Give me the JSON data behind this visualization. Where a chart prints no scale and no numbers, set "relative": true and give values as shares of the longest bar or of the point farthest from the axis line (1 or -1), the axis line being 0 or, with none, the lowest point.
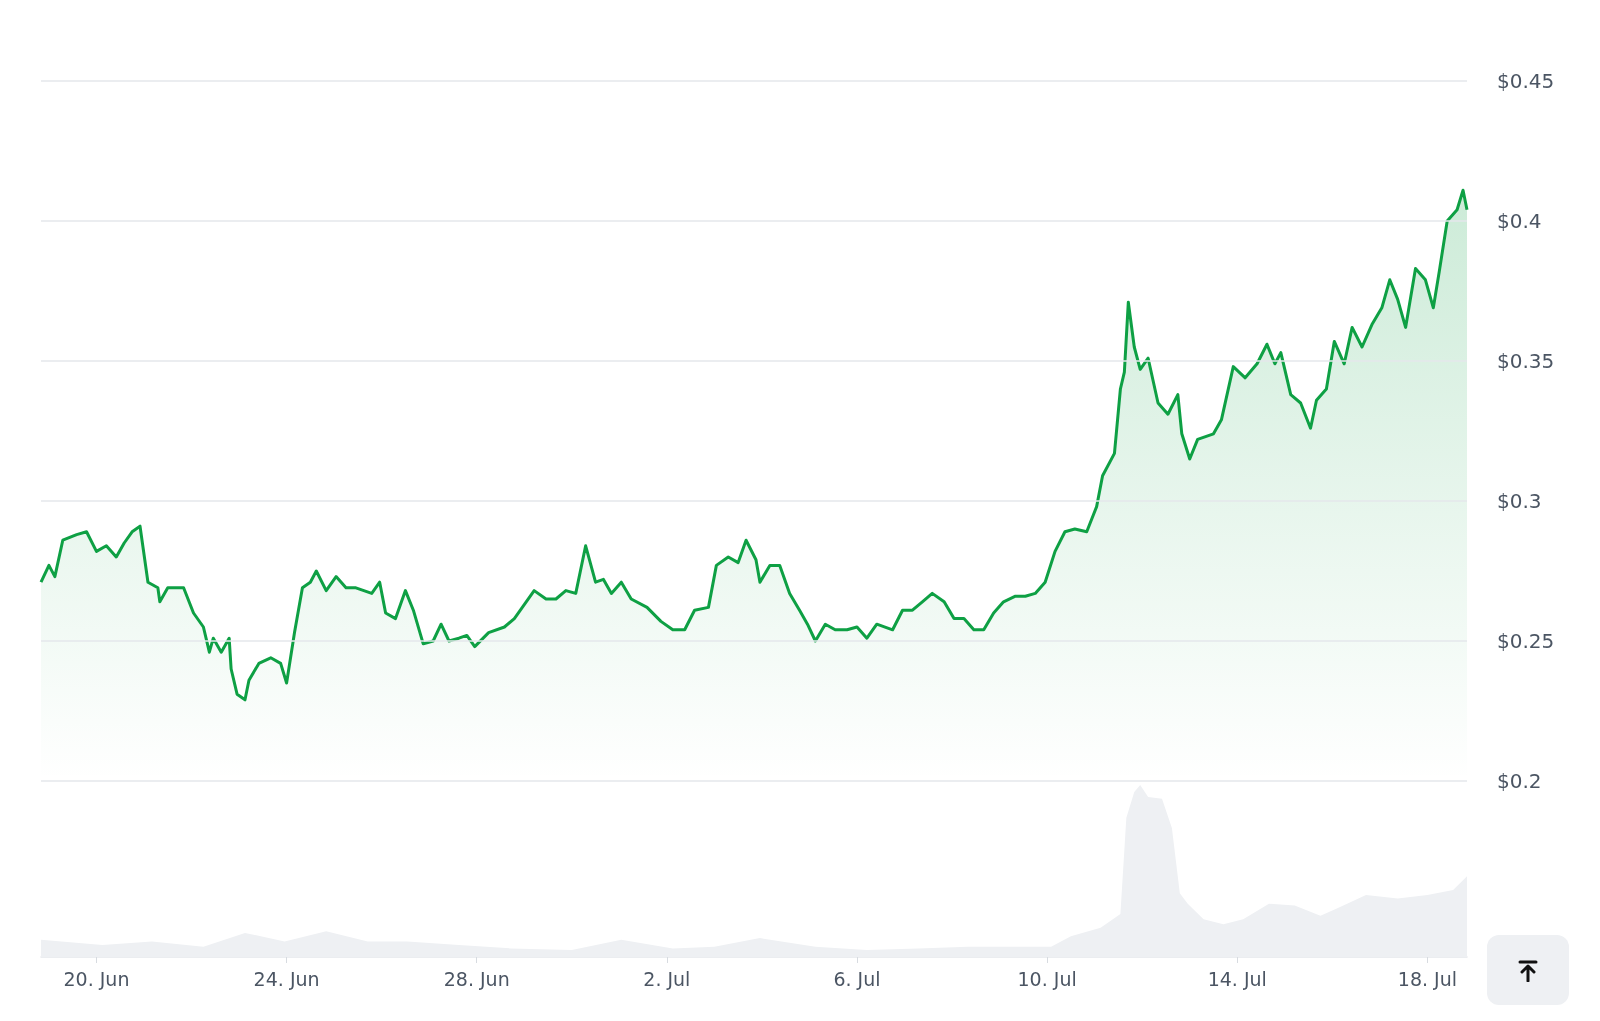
{
  "chart_data": [
    {
      "type": "area",
      "color": "#0ea044",
      "x": [
        "--06-18T20:00",
        "--06-19T00:00",
        "--06-19T03:00",
        "--06-19T07:00",
        "--06-19T14:00",
        "--06-19T19:00",
        "--06-20T00:00",
        "--06-20T05:00",
        "--06-20T10:00",
        "--06-20T14:00",
        "--06-20T18:00",
        "--06-20T22:00",
        "--06-21T02:00",
        "--06-21T07:00",
        "--06-21T08:00",
        "--06-21T12:00",
        "--06-21T20:00",
        "--06-22T01:00",
        "--06-22T06:00",
        "--06-22T09:00",
        "--06-22T11:00",
        "--06-22T15:00",
        "--06-22T19:00",
        "--06-22T20:00",
        "--06-22T23:00",
        "--06-23T03:00",
        "--06-23T05:00",
        "--06-23T10:00",
        "--06-23T16:00",
        "--06-23T21:00",
        "--06-24T00:00",
        "--06-24T04:00",
        "--06-24T08:00",
        "--06-24T12:00",
        "--06-24T15:00",
        "--06-24T20:00",
        "--06-25T01:00",
        "--06-25T06:00",
        "--06-25T11:00",
        "--06-25T19:00",
        "--06-25T23:00",
        "--06-26T02:00",
        "--06-26T07:00",
        "--06-26T12:00",
        "--06-26T16:00",
        "--06-26T21:00",
        "--06-27T02:00",
        "--06-27T06:00",
        "--06-27T10:00",
        "--06-27T15:00",
        "--06-27T19:00",
        "--06-27T23:00",
        "--06-28T06:00",
        "--06-28T14:00",
        "--06-28T19:00",
        "--06-29T00:00",
        "--06-29T05:00",
        "--06-29T11:00",
        "--06-29T16:00",
        "--06-29T21:00",
        "--06-30T02:00",
        "--06-30T07:00",
        "--06-30T12:00",
        "--06-30T16:00",
        "--06-30T20:00",
        "--07-01T01:00",
        "--07-01T06:00",
        "--07-01T14:00",
        "--07-01T21:00",
        "--07-02T03:00",
        "--07-02T09:00",
        "--07-02T14:00",
        "--07-02T21:00",
        "--07-03T01:00",
        "--07-03T07:00",
        "--07-03T12:00",
        "--07-03T16:00",
        "--07-03T21:00",
        "--07-03T23:00",
        "--07-04T04:00",
        "--07-04T09:00",
        "--07-04T14:00",
        "--07-04T19:00",
        "--07-04T23:00",
        "--07-05T03:00",
        "--07-05T08:00",
        "--07-05T13:00",
        "--07-05T19:00",
        "--07-06T00:00",
        "--07-06T05:00",
        "--07-06T10:00",
        "--07-06T18:00",
        "--07-06T23:00",
        "--07-07T04:00",
        "--07-07T09:00",
        "--07-07T14:00",
        "--07-07T20:00",
        "--07-08T01:00",
        "--07-08T06:00",
        "--07-08T11:00",
        "--07-08T16:00",
        "--07-08T21:00",
        "--07-09T02:00",
        "--07-09T08:00",
        "--07-09T13:00",
        "--07-09T18:00",
        "--07-09T23:00",
        "--07-10T04:00",
        "--07-10T09:00",
        "--07-10T14:00",
        "--07-10T20:00",
        "--07-11T01:00",
        "--07-11T04:00",
        "--07-11T10:00",
        "--07-11T13:00",
        "--07-11T15:00",
        "--07-11T17:00",
        "--07-11T20:00",
        "--07-11T23:00",
        "--07-12T03:00",
        "--07-12T08:00",
        "--07-12T13:00",
        "--07-12T18:00",
        "--07-12T20:00",
        "--07-13T00:00",
        "--07-13T04:00",
        "--07-13T12:00",
        "--07-13T16:00",
        "--07-13T22:00",
        "--07-14T04:00",
        "--07-14T10:00",
        "--07-14T15:00",
        "--07-14T19:00",
        "--07-14T22:00",
        "--07-15T03:00",
        "--07-15T08:00",
        "--07-15T13:00",
        "--07-15T16:00",
        "--07-15T21:00",
        "--07-16T01:00",
        "--07-16T06:00",
        "--07-16T10:00",
        "--07-16T15:00",
        "--07-16T20:00",
        "--07-17T01:00",
        "--07-17T05:00",
        "--07-17T09:00",
        "--07-17T13:00",
        "--07-17T18:00",
        "--07-17T23:00",
        "--07-18T03:00",
        "--07-18T06:00",
        "--07-18T10:00",
        "--07-18T15:00",
        "--07-18T18:00",
        "--07-18T20:00"
      ],
      "values": [
        0.271,
        0.277,
        0.273,
        0.286,
        0.288,
        0.289,
        0.282,
        0.284,
        0.28,
        0.285,
        0.289,
        0.291,
        0.271,
        0.269,
        0.264,
        0.269,
        0.269,
        0.26,
        0.255,
        0.246,
        0.251,
        0.246,
        0.251,
        0.24,
        0.231,
        0.229,
        0.236,
        0.242,
        0.244,
        0.242,
        0.235,
        0.253,
        0.269,
        0.271,
        0.275,
        0.268,
        0.273,
        0.269,
        0.269,
        0.267,
        0.271,
        0.26,
        0.258,
        0.268,
        0.261,
        0.249,
        0.25,
        0.256,
        0.25,
        0.251,
        0.252,
        0.248,
        0.253,
        0.255,
        0.258,
        0.263,
        0.268,
        0.265,
        0.265,
        0.268,
        0.267,
        0.284,
        0.271,
        0.272,
        0.267,
        0.271,
        0.265,
        0.262,
        0.257,
        0.254,
        0.254,
        0.261,
        0.262,
        0.277,
        0.28,
        0.278,
        0.286,
        0.279,
        0.271,
        0.277,
        0.277,
        0.267,
        0.261,
        0.256,
        0.25,
        0.256,
        0.254,
        0.254,
        0.255,
        0.251,
        0.256,
        0.254,
        0.261,
        0.261,
        0.264,
        0.267,
        0.264,
        0.258,
        0.258,
        0.254,
        0.254,
        0.26,
        0.264,
        0.266,
        0.266,
        0.267,
        0.271,
        0.282,
        0.289,
        0.29,
        0.289,
        0.298,
        0.309,
        0.317,
        0.34,
        0.346,
        0.371,
        0.355,
        0.347,
        0.351,
        0.335,
        0.331,
        0.338,
        0.324,
        0.315,
        0.322,
        0.324,
        0.329,
        0.348,
        0.344,
        0.349,
        0.356,
        0.349,
        0.353,
        0.338,
        0.335,
        0.326,
        0.336,
        0.34,
        0.357,
        0.349,
        0.362,
        0.355,
        0.363,
        0.369,
        0.379,
        0.372,
        0.362,
        0.383,
        0.379,
        0.369,
        0.382,
        0.4,
        0.404,
        0.411,
        0.404
      ],
      "xlim": [
        "--06-18T20:00",
        "--07-18T20:00"
      ],
      "ylim": [
        0.2,
        0.45
      ],
      "yticks": [
        {
          "value": 0.2,
          "label": "$0.2"
        },
        {
          "value": 0.25,
          "label": "$0.25"
        },
        {
          "value": 0.3,
          "label": "$0.3"
        },
        {
          "value": 0.35,
          "label": "$0.35"
        },
        {
          "value": 0.4,
          "label": "$0.4"
        },
        {
          "value": 0.45,
          "label": "$0.45"
        }
      ],
      "grid": "y",
      "tick_labels": "y"
    },
    {
      "type": "area",
      "relative": true,
      "color": "#eef0f3",
      "x": [
        "--06-18T20:00",
        "--06-20T03:00",
        "--06-21T04:00",
        "--06-22T06:00",
        "--06-23T03:00",
        "--06-23T23:00",
        "--06-24T20:00",
        "--06-25T17:00",
        "--06-26T13:00",
        "--06-27T15:00",
        "--06-28T17:00",
        "--06-30T00:00",
        "--07-01T01:00",
        "--07-02T03:00",
        "--07-03T00:00",
        "--07-03T23:00",
        "--07-05T03:00",
        "--07-06T05:00",
        "--07-07T07:00",
        "--07-08T08:00",
        "--07-09T10:00",
        "--07-10T02:00",
        "--07-10T12:00",
        "--07-11T03:00",
        "--07-11T13:00",
        "--07-11T16:00",
        "--07-11T20:00",
        "--07-11T23:00",
        "--07-12T03:00",
        "--07-12T10:00",
        "--07-12T15:00",
        "--07-12T19:00",
        "--07-12T23:00",
        "--07-13T07:00",
        "--07-13T17:00",
        "--07-14T03:00",
        "--07-14T16:00",
        "--07-15T05:00",
        "--07-15T18:00",
        "--07-16T02:00",
        "--07-16T17:00",
        "--07-17T09:00",
        "--07-18T00:00",
        "--07-18T13:00",
        "--07-18T20:00"
      ],
      "values": [
        0.1,
        0.07,
        0.09,
        0.06,
        0.14,
        0.09,
        0.15,
        0.09,
        0.09,
        0.07,
        0.05,
        0.04,
        0.1,
        0.05,
        0.06,
        0.11,
        0.06,
        0.04,
        0.05,
        0.06,
        0.06,
        0.06,
        0.12,
        0.17,
        0.25,
        0.81,
        0.96,
        1,
        0.93,
        0.92,
        0.75,
        0.37,
        0.31,
        0.22,
        0.19,
        0.22,
        0.31,
        0.3,
        0.24,
        0.28,
        0.36,
        0.34,
        0.36,
        0.39,
        0.47
      ],
      "xlim": [
        "--06-18T20:00",
        "--07-18T20:00"
      ],
      "xticks": [
        {
          "value": "--06-20",
          "label": "20. Jun"
        },
        {
          "value": "--06-24",
          "label": "24. Jun"
        },
        {
          "value": "--06-28",
          "label": "28. Jun"
        },
        {
          "value": "--07-02",
          "label": "2. Jul"
        },
        {
          "value": "--07-06",
          "label": "6. Jul"
        },
        {
          "value": "--07-10",
          "label": "10. Jul"
        },
        {
          "value": "--07-14",
          "label": "14. Jul"
        },
        {
          "value": "--07-18",
          "label": "18. Jul"
        }
      ],
      "tick_labels": "x"
    }
  ]
}
